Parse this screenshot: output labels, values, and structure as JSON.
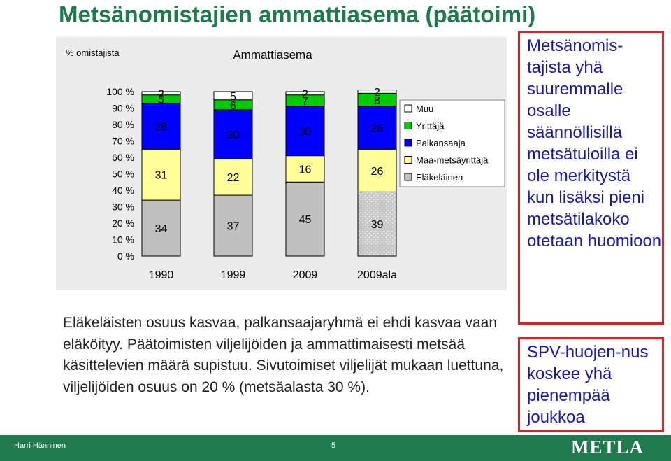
{
  "page_title": "Metsänomistajien ammattiasema (päätoimi)",
  "chart_data": {
    "type": "bar",
    "stacked": true,
    "percent": true,
    "title": "Ammattiasema",
    "ylabel": "% omistajista",
    "ylim": [
      0,
      100
    ],
    "yticks": [
      "0 %",
      "10 %",
      "20 %",
      "30 %",
      "40 %",
      "50 %",
      "60 %",
      "70 %",
      "80 %",
      "90 %",
      "100 %"
    ],
    "categories": [
      "1990",
      "1999",
      "2009",
      "2009ala"
    ],
    "legend_position": "right",
    "series": [
      {
        "name": "Eläkeläinen",
        "color": "#c0c0c0",
        "values": [
          34,
          37,
          45,
          39
        ]
      },
      {
        "name": "Maa-metsäyrittäjä",
        "color": "#ffff99",
        "values": [
          31,
          22,
          16,
          26
        ]
      },
      {
        "name": "Palkansaaja",
        "color": "#0000ff",
        "values": [
          28,
          30,
          30,
          26
        ]
      },
      {
        "name": "Yrittäjä",
        "color": "#00cc00",
        "values": [
          5,
          6,
          7,
          8
        ]
      },
      {
        "name": "Muu",
        "color": "#ffffff",
        "values": [
          2,
          5,
          2,
          2
        ]
      }
    ]
  },
  "caption": "Eläkeläisten osuus kasvaa, palkansaajaryhmä ei ehdi kasvaa vaan eläköityy. Päätoimisten viljelijöiden ja ammattimaisesti metsää käsittelevien määrä supistuu. Sivutoimiset viljelijät mukaan luettuna, viljelijöiden osuus on 20 % (metsäalasta 30 %).",
  "box1_text": "Metsänomis-tajista yhä suuremmalle osalle säännöllisillä metsätuloilla ei ole merkitystä kun lisäksi pieni metsätilakoko otetaan huomioon",
  "box2_text": "SPV-huojen-nus koskee yhä pienempää joukkoa",
  "footer": {
    "author": "Harri Hänninen",
    "page": "5",
    "logo": "METLA"
  }
}
